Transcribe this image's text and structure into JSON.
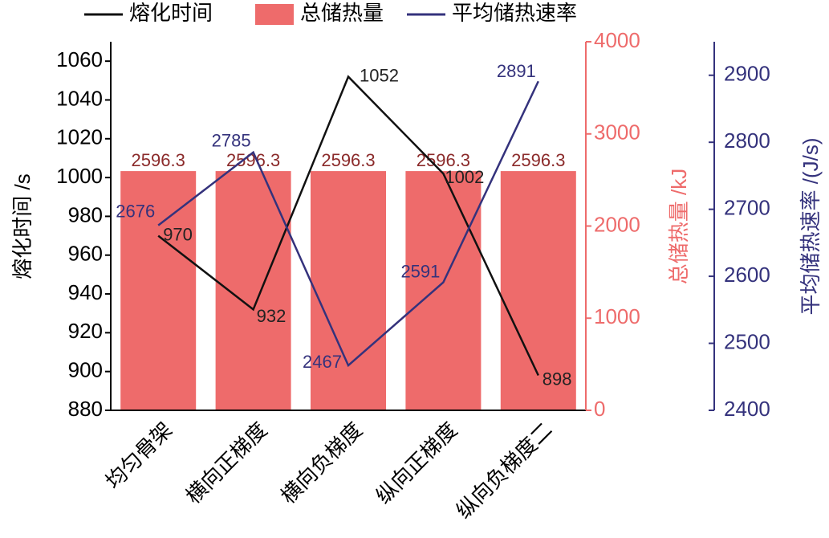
{
  "chart_data": {
    "type": "bar",
    "categories": [
      "均匀骨架",
      "横向正梯度",
      "横向负梯度",
      "纵向正梯度",
      "纵向负梯度二"
    ],
    "ylabel": "熔化时间 /s",
    "y2label": "总储热量 /kJ",
    "y3label": "平均储热速率 /(J/s)",
    "ylim": [
      880,
      1070
    ],
    "yticks": [
      880,
      900,
      920,
      940,
      960,
      980,
      1000,
      1020,
      1040,
      1060
    ],
    "y2lim": [
      0,
      4000
    ],
    "y2ticks": [
      0,
      1000,
      2000,
      3000,
      4000
    ],
    "y3lim": [
      2400,
      2950
    ],
    "y3ticks": [
      2400,
      2500,
      2600,
      2700,
      2800,
      2900
    ],
    "legend": "top",
    "series": [
      {
        "name": "熔化时间",
        "type": "line",
        "axis": "y",
        "color": "#111111",
        "values": [
          970,
          932,
          1052,
          1002,
          898
        ]
      },
      {
        "name": "总储热量",
        "type": "bar",
        "axis": "y2",
        "color": "#ee6b6b",
        "values": [
          2596.3,
          2596.3,
          2596.3,
          2596.3,
          2596.3
        ]
      },
      {
        "name": "平均储热速率",
        "type": "line",
        "axis": "y3",
        "color": "#34327c",
        "values": [
          2676,
          2785,
          2467,
          2591,
          2891
        ]
      }
    ]
  }
}
